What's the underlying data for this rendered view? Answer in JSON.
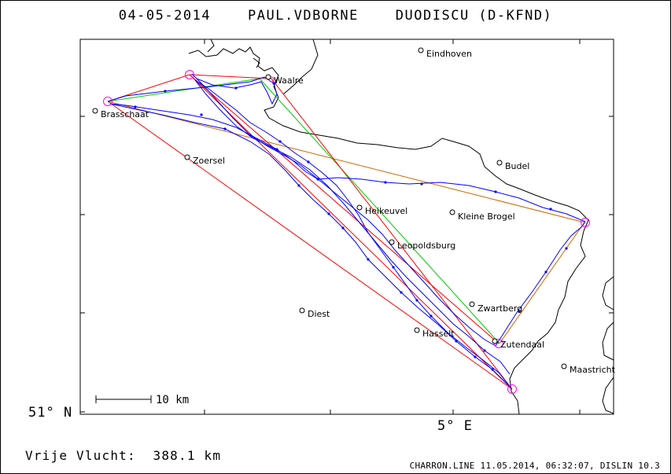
{
  "header": {
    "date": "04-05-2014",
    "pilot": "PAUL.VDBORNE",
    "glider": "DUODISCU (D-KFND)"
  },
  "axes": {
    "lat_label": "51° N",
    "lon_label": "5° E"
  },
  "scale_bar": {
    "label": "10 km"
  },
  "footer": {
    "distance_caption": "Vrije Vlucht:",
    "distance_value": "388.1 km",
    "credit": "CHARRON.LINE 11.05.2014, 06:32:07, DISLIN 10.3"
  },
  "cities": [
    {
      "name": "Eindhoven"
    },
    {
      "name": "Waalre"
    },
    {
      "name": "Brasschaat"
    },
    {
      "name": "Zoersel"
    },
    {
      "name": "Budel"
    },
    {
      "name": "Heikeuvel"
    },
    {
      "name": "Kleine Brogel"
    },
    {
      "name": "Leopoldsburg"
    },
    {
      "name": "Diest"
    },
    {
      "name": "Zwartberg"
    },
    {
      "name": "Hasselt"
    },
    {
      "name": "Zutendaal"
    },
    {
      "name": "Maastricht"
    }
  ],
  "colors": {
    "track": "#0000ff",
    "turnpoint": "#ff00ff",
    "task_red": "#ff0000",
    "task_green": "#00cc00",
    "task_orange": "#cc6600",
    "border": "#000000"
  }
}
